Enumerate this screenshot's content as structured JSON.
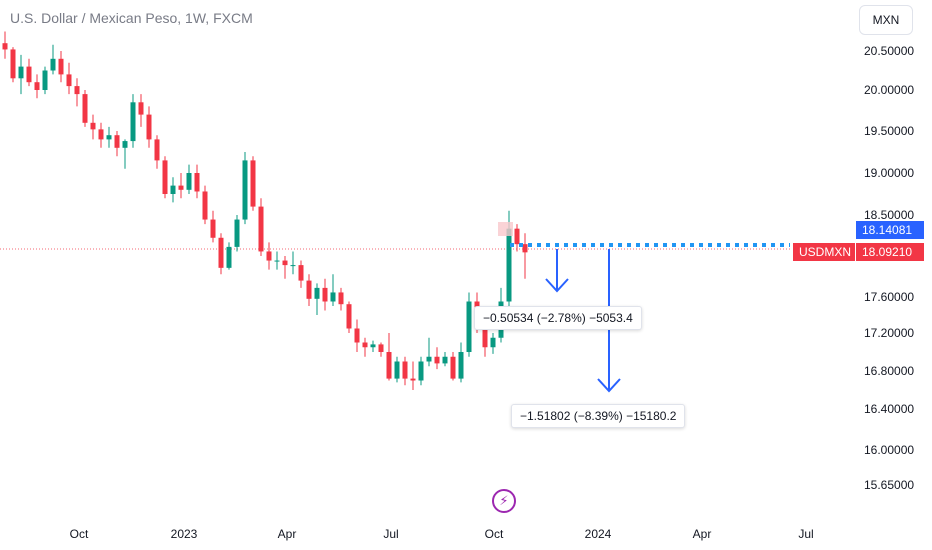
{
  "header": {
    "title": "U.S. Dollar / Mexican Peso, 1W, FXCM",
    "currency": "MXN"
  },
  "price_tags": {
    "blue_value": "18.14081",
    "symbol": "USDMXN",
    "red_value": "18.09210"
  },
  "measurements": {
    "short": "−0.50534 (−2.78%) −5053.4",
    "long": "−1.51802 (−8.39%) −15180.2"
  },
  "icons": {
    "bolt": "lightning-icon"
  },
  "colors": {
    "up": "#089981",
    "down": "#f23645",
    "arrow": "#2962ff",
    "dotted": "#2196f3"
  },
  "chart_data": {
    "type": "candlestick",
    "title": "U.S. Dollar / Mexican Peso, 1W, FXCM",
    "y_ticks": [
      "20.50000",
      "20.00000",
      "19.50000",
      "19.00000",
      "18.50000",
      "17.60000",
      "17.20000",
      "16.80000",
      "16.40000",
      "16.00000",
      "15.65000"
    ],
    "x_ticks": [
      "Oct",
      "2023",
      "Apr",
      "Jul",
      "Oct",
      "2024",
      "Apr",
      "Jul"
    ],
    "series": [
      {
        "ohlc": [
          [
            20.6,
            20.75,
            20.4,
            20.52
          ],
          [
            20.52,
            20.55,
            20.1,
            20.15
          ],
          [
            20.15,
            20.45,
            19.95,
            20.3
          ],
          [
            20.3,
            20.4,
            20.05,
            20.1
          ],
          [
            20.1,
            20.2,
            19.9,
            20.0
          ],
          [
            20.0,
            20.3,
            19.95,
            20.25
          ],
          [
            20.25,
            20.58,
            20.2,
            20.4
          ],
          [
            20.4,
            20.5,
            20.1,
            20.2
          ],
          [
            20.2,
            20.35,
            19.95,
            20.05
          ],
          [
            20.05,
            20.15,
            19.8,
            19.95
          ],
          [
            19.95,
            20.0,
            19.55,
            19.6
          ],
          [
            19.6,
            19.7,
            19.4,
            19.52
          ],
          [
            19.52,
            19.6,
            19.3,
            19.4
          ],
          [
            19.4,
            19.55,
            19.3,
            19.45
          ],
          [
            19.45,
            19.5,
            19.2,
            19.3
          ],
          [
            19.3,
            19.4,
            19.05,
            19.38
          ],
          [
            19.38,
            19.95,
            19.3,
            19.85
          ],
          [
            19.85,
            19.95,
            19.55,
            19.7
          ],
          [
            19.7,
            19.8,
            19.3,
            19.4
          ],
          [
            19.4,
            19.45,
            19.05,
            19.15
          ],
          [
            19.15,
            19.2,
            18.7,
            18.75
          ],
          [
            18.75,
            18.95,
            18.65,
            18.85
          ],
          [
            18.85,
            19.0,
            18.7,
            18.8
          ],
          [
            18.8,
            19.1,
            18.75,
            19.0
          ],
          [
            19.0,
            19.1,
            18.7,
            18.78
          ],
          [
            18.78,
            18.85,
            18.4,
            18.45
          ],
          [
            18.45,
            18.55,
            18.2,
            18.25
          ],
          [
            18.25,
            18.3,
            17.85,
            17.92
          ],
          [
            17.92,
            18.2,
            17.9,
            18.15
          ],
          [
            18.15,
            18.5,
            18.1,
            18.45
          ],
          [
            18.45,
            19.25,
            18.4,
            19.15
          ],
          [
            19.15,
            19.2,
            18.55,
            18.6
          ],
          [
            18.6,
            18.7,
            18.05,
            18.1
          ],
          [
            18.1,
            18.2,
            17.9,
            18.0
          ],
          [
            18.0,
            18.1,
            17.9,
            18.0
          ],
          [
            18.0,
            18.05,
            17.8,
            17.95
          ],
          [
            17.95,
            18.1,
            17.85,
            17.95
          ],
          [
            17.95,
            18.0,
            17.7,
            17.78
          ],
          [
            17.78,
            17.85,
            17.5,
            17.58
          ],
          [
            17.58,
            17.75,
            17.4,
            17.7
          ],
          [
            17.7,
            17.8,
            17.45,
            17.55
          ],
          [
            17.55,
            17.85,
            17.5,
            17.65
          ],
          [
            17.65,
            17.7,
            17.45,
            17.52
          ],
          [
            17.52,
            17.55,
            17.2,
            17.25
          ],
          [
            17.25,
            17.35,
            17.0,
            17.1
          ],
          [
            17.1,
            17.15,
            16.95,
            17.05
          ],
          [
            17.05,
            17.12,
            17.0,
            17.08
          ],
          [
            17.08,
            17.1,
            16.95,
            17.0
          ],
          [
            17.0,
            17.2,
            16.7,
            16.72
          ],
          [
            16.72,
            16.95,
            16.68,
            16.9
          ],
          [
            16.9,
            16.95,
            16.65,
            16.72
          ],
          [
            16.72,
            16.9,
            16.6,
            16.7
          ],
          [
            16.7,
            16.95,
            16.65,
            16.9
          ],
          [
            16.9,
            17.15,
            16.85,
            16.95
          ],
          [
            16.95,
            17.05,
            16.82,
            16.88
          ],
          [
            16.88,
            17.0,
            16.85,
            16.95
          ],
          [
            16.95,
            17.0,
            16.7,
            16.72
          ],
          [
            16.72,
            17.1,
            16.68,
            17.0
          ],
          [
            17.0,
            17.65,
            16.95,
            17.55
          ],
          [
            17.55,
            17.65,
            17.2,
            17.3
          ],
          [
            17.3,
            17.4,
            16.95,
            17.05
          ],
          [
            17.05,
            17.2,
            16.98,
            17.15
          ],
          [
            17.15,
            17.7,
            17.1,
            17.55
          ],
          [
            17.55,
            18.55,
            17.5,
            18.35
          ],
          [
            18.35,
            18.4,
            18.1,
            18.18
          ],
          [
            18.18,
            18.3,
            17.8,
            18.09
          ]
        ]
      }
    ],
    "last_price": 18.0921,
    "ask_price": 18.14081
  }
}
